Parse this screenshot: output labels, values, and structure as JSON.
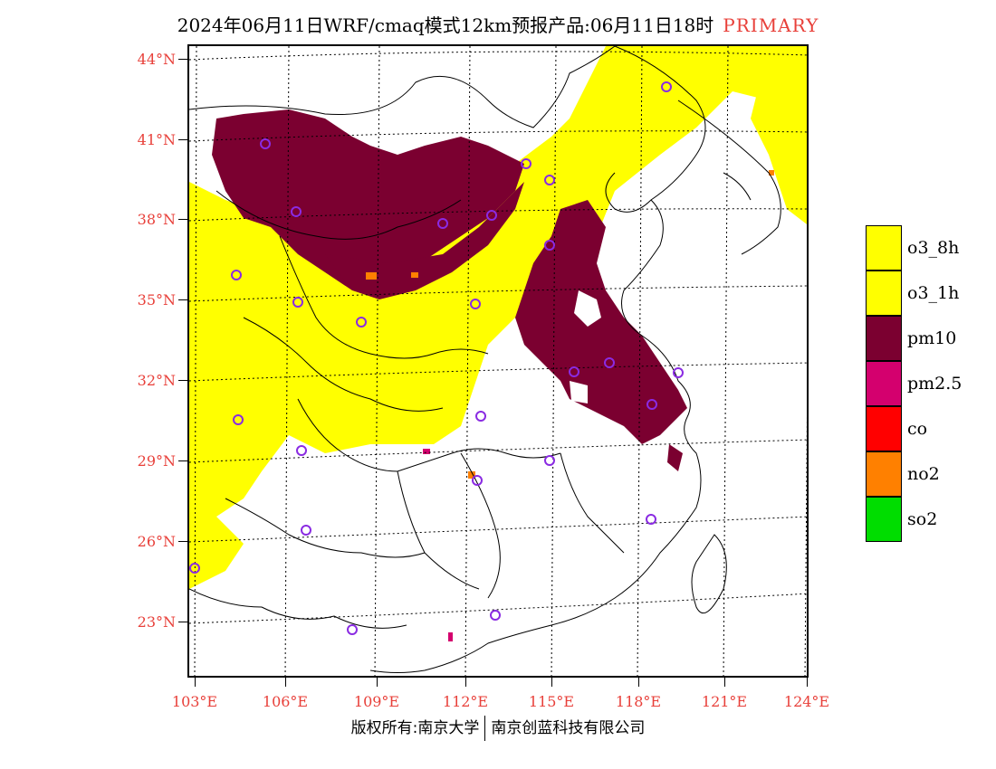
{
  "title": {
    "main": "2024年06月11日WRF/cmaq模式12km预报产品:06月11日18时",
    "tag": "PRIMARY"
  },
  "axes": {
    "lat_labels": [
      "44°N",
      "41°N",
      "38°N",
      "35°N",
      "32°N",
      "29°N",
      "26°N",
      "23°N"
    ],
    "lon_labels": [
      "103°E",
      "106°E",
      "109°E",
      "112°E",
      "115°E",
      "118°E",
      "121°E",
      "124°E"
    ]
  },
  "legend": {
    "items": [
      {
        "label": "o3_8h",
        "color": "#ffff00"
      },
      {
        "label": "o3_1h",
        "color": "#ffff00"
      },
      {
        "label": "pm10",
        "color": "#7b0030"
      },
      {
        "label": "pm2.5",
        "color": "#d4006e"
      },
      {
        "label": "co",
        "color": "#ff0000"
      },
      {
        "label": "no2",
        "color": "#ff8000"
      },
      {
        "label": "so2",
        "color": "#00dd00"
      }
    ]
  },
  "footer": {
    "left": "版权所有:南京大学",
    "right": "南京创蓝科技有限公司"
  },
  "colors": {
    "label_red": "#e8403a",
    "station_circle": "#8a2be2"
  }
}
